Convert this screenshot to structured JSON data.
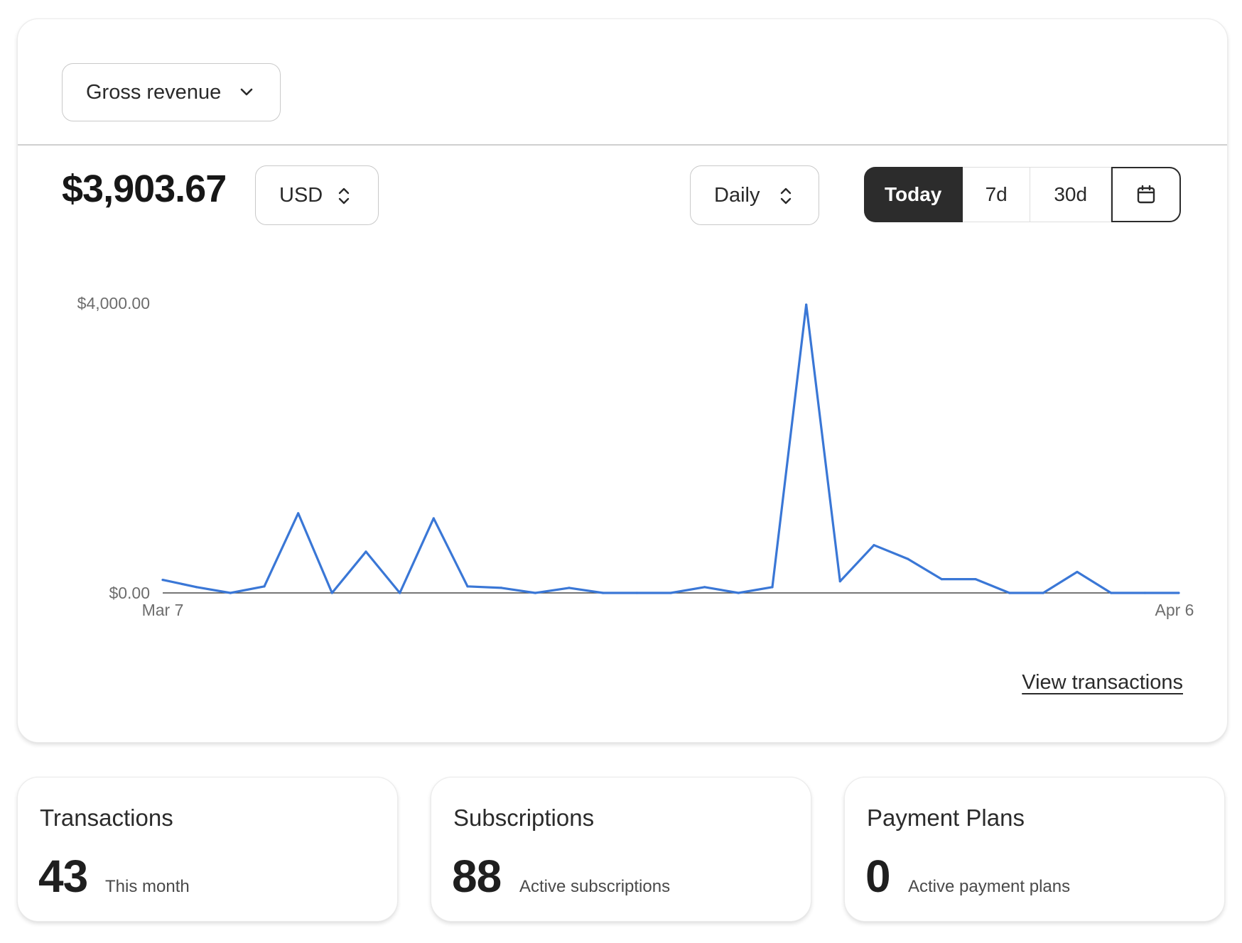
{
  "revenue_card": {
    "metric_select": {
      "label": "Gross revenue",
      "icon": "chevron-down-icon"
    },
    "total": "$3,903.67",
    "currency_select": {
      "label": "USD",
      "icon": "up-down-icon"
    },
    "interval_select": {
      "label": "Daily",
      "icon": "up-down-icon"
    },
    "ranges": [
      {
        "label": "Today",
        "active": true
      },
      {
        "label": "7d",
        "active": false
      },
      {
        "label": "30d",
        "active": false
      }
    ],
    "calendar_button_icon": "calendar-icon",
    "view_transactions": "View transactions"
  },
  "chart_data": {
    "type": "line",
    "y_tick_labels": [
      "$4,000.00",
      "$0.00"
    ],
    "x_tick_labels": [
      "Mar 7",
      "Apr 6"
    ],
    "ylim": [
      0,
      4000
    ],
    "grid": false,
    "line_color": "#3a77d6",
    "x": [
      "Mar 7",
      "Mar 8",
      "Mar 9",
      "Mar 10",
      "Mar 11",
      "Mar 12",
      "Mar 13",
      "Mar 14",
      "Mar 15",
      "Mar 16",
      "Mar 17",
      "Mar 18",
      "Mar 19",
      "Mar 20",
      "Mar 21",
      "Mar 22",
      "Mar 23",
      "Mar 24",
      "Mar 25",
      "Mar 26",
      "Mar 27",
      "Mar 28",
      "Mar 29",
      "Mar 30",
      "Mar 31",
      "Apr 1",
      "Apr 2",
      "Apr 3",
      "Apr 4",
      "Apr 5",
      "Apr 6"
    ],
    "values": [
      180,
      80,
      0,
      90,
      1100,
      0,
      570,
      0,
      1030,
      90,
      70,
      0,
      70,
      0,
      0,
      0,
      80,
      0,
      80,
      3980,
      160,
      660,
      470,
      190,
      190,
      0,
      0,
      290,
      0,
      0,
      0
    ]
  },
  "stats": [
    {
      "title": "Transactions",
      "value": "43",
      "caption": "This month"
    },
    {
      "title": "Subscriptions",
      "value": "88",
      "caption": "Active subscriptions"
    },
    {
      "title": "Payment Plans",
      "value": "0",
      "caption": "Active payment plans"
    }
  ]
}
